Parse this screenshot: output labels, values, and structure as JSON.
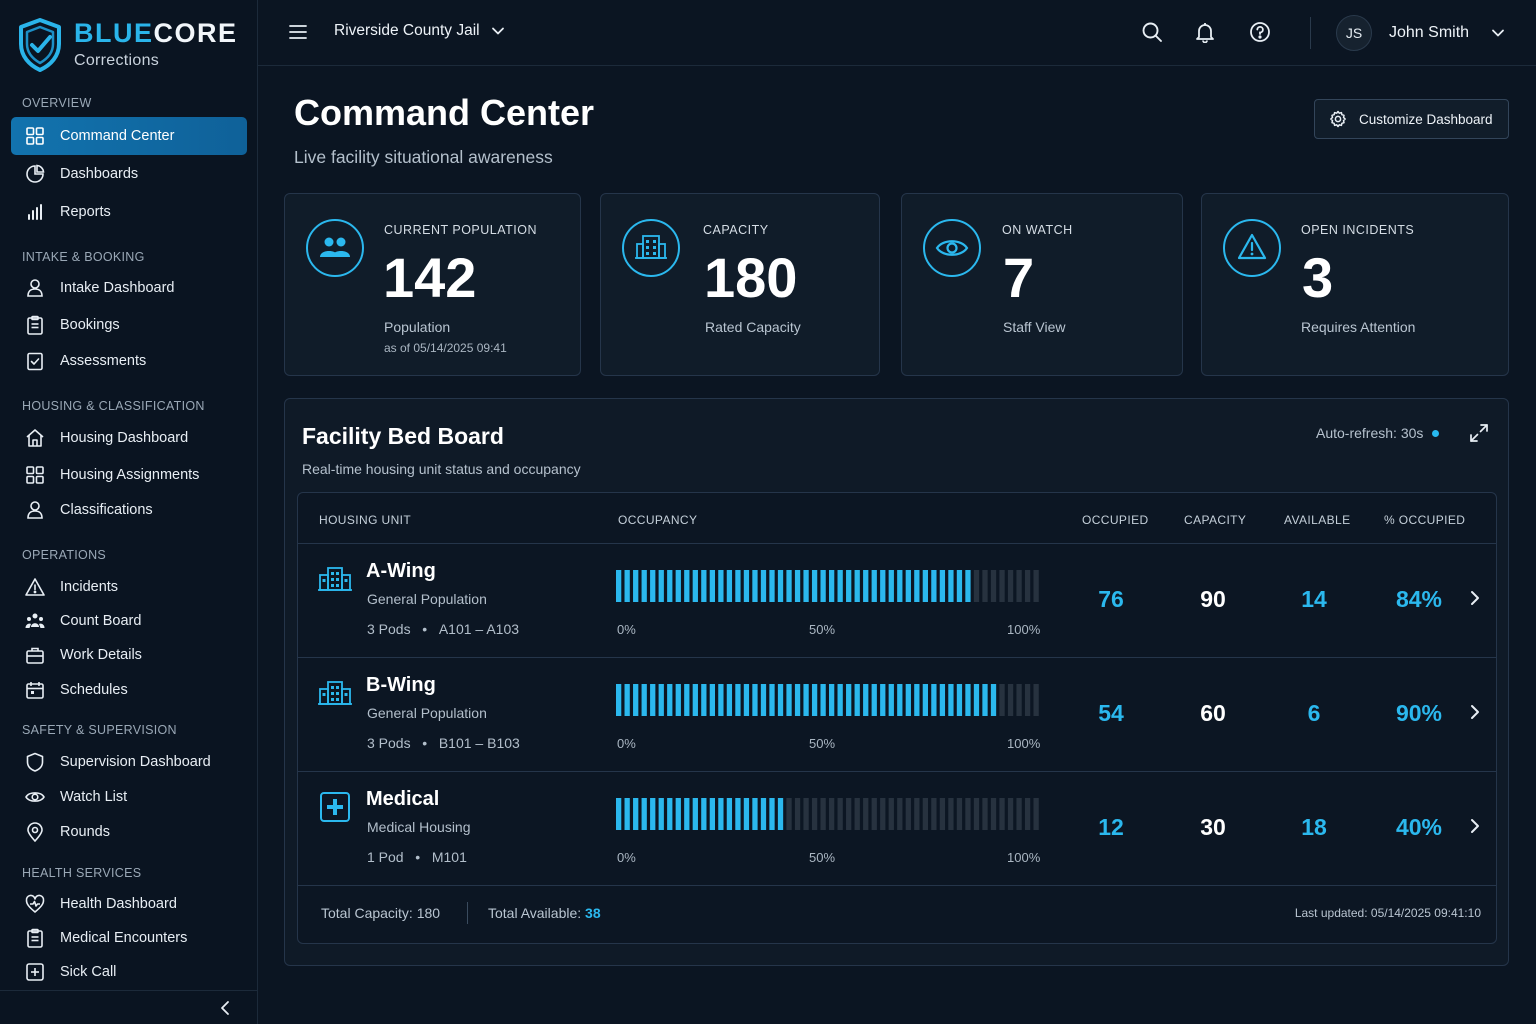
{
  "brand": {
    "name_part1": "BLUE",
    "name_part2": "CORE",
    "subtitle": "Corrections"
  },
  "sidebar": {
    "sections": [
      {
        "title": "OVERVIEW",
        "items": [
          {
            "label": "Command Center",
            "icon": "grid-icon",
            "active": true
          },
          {
            "label": "Dashboards",
            "icon": "pie-chart-icon"
          },
          {
            "label": "Reports",
            "icon": "bar-chart-icon"
          }
        ]
      },
      {
        "title": "INTAKE & BOOKING",
        "items": [
          {
            "label": "Intake Dashboard",
            "icon": "user-icon"
          },
          {
            "label": "Bookings",
            "icon": "clipboard-icon"
          },
          {
            "label": "Assessments",
            "icon": "checklist-icon"
          }
        ]
      },
      {
        "title": "HOUSING & CLASSIFICATION",
        "items": [
          {
            "label": "Housing Dashboard",
            "icon": "home-icon"
          },
          {
            "label": "Housing Assignments",
            "icon": "grid-icon"
          },
          {
            "label": "Classifications",
            "icon": "user-icon"
          }
        ]
      },
      {
        "title": "OPERATIONS",
        "items": [
          {
            "label": "Incidents",
            "icon": "warning-icon"
          },
          {
            "label": "Count Board",
            "icon": "users-icon"
          },
          {
            "label": "Work Details",
            "icon": "briefcase-icon"
          },
          {
            "label": "Schedules",
            "icon": "calendar-icon"
          }
        ]
      },
      {
        "title": "SAFETY & SUPERVISION",
        "items": [
          {
            "label": "Supervision Dashboard",
            "icon": "shield-icon"
          },
          {
            "label": "Watch List",
            "icon": "eye-icon"
          },
          {
            "label": "Rounds",
            "icon": "location-pin-icon"
          }
        ]
      },
      {
        "title": "HEALTH SERVICES",
        "items": [
          {
            "label": "Health Dashboard",
            "icon": "heart-icon"
          },
          {
            "label": "Medical Encounters",
            "icon": "clipboard-icon"
          },
          {
            "label": "Sick Call",
            "icon": "plus-square-icon"
          }
        ]
      }
    ]
  },
  "topbar": {
    "facility": "Riverside County Jail",
    "user_initials": "JS",
    "user_name": "John Smith"
  },
  "page": {
    "title": "Command Center",
    "subtitle": "Live facility situational awareness",
    "customize_label": "Customize Dashboard"
  },
  "stats": [
    {
      "label": "CURRENT POPULATION",
      "value": "142",
      "caption": "Population",
      "caption2": "as of 05/14/2025 09:41",
      "icon": "users-icon"
    },
    {
      "label": "CAPACITY",
      "value": "180",
      "caption": "Rated Capacity",
      "icon": "building-icon"
    },
    {
      "label": "ON WATCH",
      "value": "7",
      "caption": "Staff View",
      "icon": "eye-icon"
    },
    {
      "label": "OPEN INCIDENTS",
      "value": "3",
      "caption": "Requires Attention",
      "icon": "warning-icon"
    }
  ],
  "bedboard": {
    "title": "Facility Bed Board",
    "subtitle": "Real-time housing unit status and occupancy",
    "refresh": "Auto-refresh: 30s",
    "columns": [
      "HOUSING UNIT",
      "OCCUPANCY",
      "OCCUPIED",
      "CAPACITY",
      "AVAILABLE",
      "% OCCUPIED"
    ],
    "tick_labels": [
      "0%",
      "50%",
      "100%"
    ],
    "rows": [
      {
        "name": "A-Wing",
        "type": "General Population",
        "pods": "3 Pods",
        "range": "A101 – A103",
        "occupied": "76",
        "capacity": "90",
        "available": "14",
        "percent": "84%",
        "fraction": 0.84,
        "icon": "building-icon"
      },
      {
        "name": "B-Wing",
        "type": "General Population",
        "pods": "3 Pods",
        "range": "B101 – B103",
        "occupied": "54",
        "capacity": "60",
        "available": "6",
        "percent": "90%",
        "fraction": 0.9,
        "icon": "building-icon"
      },
      {
        "name": "Medical",
        "type": "Medical Housing",
        "pods": "1 Pod",
        "range": "M101",
        "occupied": "12",
        "capacity": "30",
        "available": "18",
        "percent": "40%",
        "fraction": 0.4,
        "icon": "medical-plus-icon"
      }
    ],
    "footer": {
      "total_capacity_label": "Total Capacity:",
      "total_capacity": "180",
      "total_available_label": "Total Available:",
      "total_available": "38",
      "last_updated": "Last updated: 05/14/2025 09:41:10"
    }
  },
  "colors": {
    "accent": "#2bb8ee",
    "active_nav": "#1273ae",
    "background": "#0b1522",
    "card": "#101c29"
  }
}
